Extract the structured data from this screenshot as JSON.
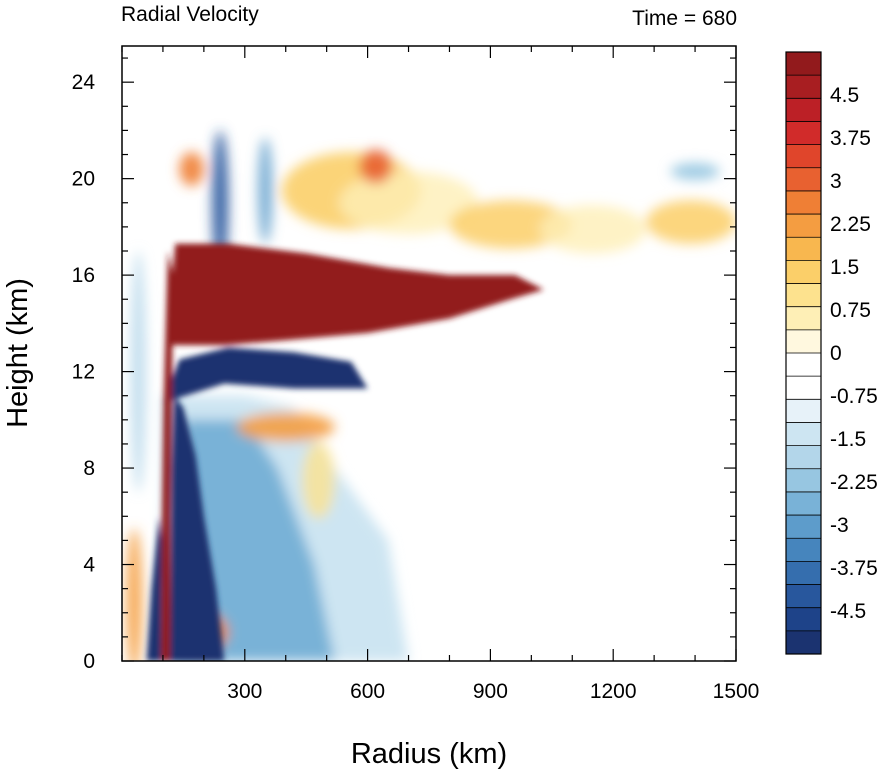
{
  "chart_data": {
    "type": "heatmap",
    "title_left": "Radial Velocity",
    "title_right": "Time = 680",
    "xlabel": "Radius (km)",
    "ylabel": "Height (km)",
    "xlim": [
      0,
      1500
    ],
    "ylim": [
      0,
      25.5
    ],
    "x_ticks": [
      300,
      600,
      900,
      1200,
      1500
    ],
    "x_tick_labels": [
      "300",
      "600",
      "900",
      "1200",
      "1500"
    ],
    "y_ticks": [
      0,
      4,
      8,
      12,
      16,
      20,
      24
    ],
    "y_tick_labels": [
      "0",
      "4",
      "8",
      "12",
      "16",
      "20",
      "24"
    ],
    "colorbar": {
      "min": -5.25,
      "max": 5.25,
      "step": 0.375,
      "labels": [
        "4.5",
        "3.75",
        "3",
        "2.25",
        "1.5",
        "0.75",
        "0",
        "-0.75",
        "-1.5",
        "-2.25",
        "-3",
        "-3.75",
        "-4.5"
      ],
      "label_values": [
        4.5,
        3.75,
        3,
        2.25,
        1.5,
        0.75,
        0,
        -0.75,
        -1.5,
        -2.25,
        -3,
        -3.75,
        -4.5
      ]
    },
    "features": [
      {
        "name": "upper-outflow",
        "sign": "positive",
        "value": 5.25,
        "r_range": [
          110,
          1030
        ],
        "z_range": [
          13,
          17.3
        ]
      },
      {
        "name": "inflow-below-outflow",
        "sign": "negative",
        "value": -5.25,
        "r_range": [
          100,
          600
        ],
        "z_range": [
          10.5,
          13
        ]
      },
      {
        "name": "eyewall-updraft-column",
        "sign": "positive",
        "value": 5.25,
        "r_range": [
          95,
          130
        ],
        "z_range": [
          0,
          17
        ]
      },
      {
        "name": "lower-inflow-core",
        "sign": "negative",
        "value": -5.25,
        "r_range": [
          100,
          250
        ],
        "z_range": [
          0,
          11
        ]
      },
      {
        "name": "upper-level-bands",
        "sign": "positive",
        "value": 2.25,
        "r_range": [
          100,
          1500
        ],
        "z_range": [
          17,
          21
        ]
      }
    ]
  }
}
